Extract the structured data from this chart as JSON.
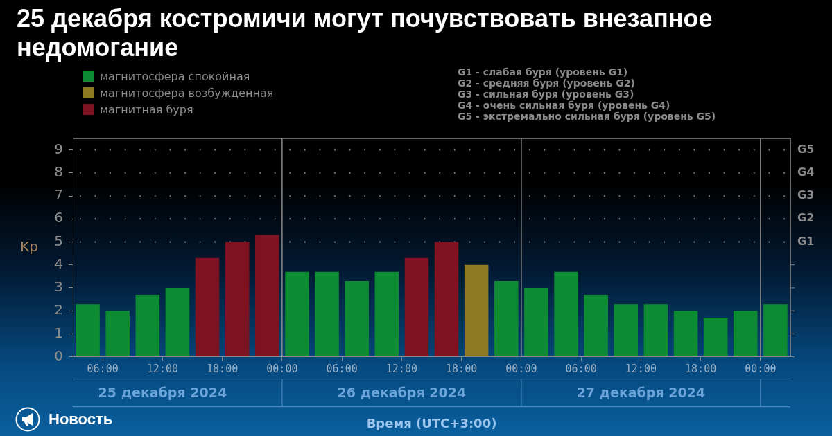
{
  "chart_data": {
    "type": "bar",
    "title": "25 декабря костромичи могут почувствовать внезапное недомогание",
    "xlabel": "Время (UTC+3:00)",
    "ylabel": "Kp",
    "xlim": [
      "2024-12-25T03:00",
      "2024-12-28T03:00"
    ],
    "xticks": [
      {
        "value": "2024-12-25T06:00",
        "label": "06:00"
      },
      {
        "value": "2024-12-25T12:00",
        "label": "12:00"
      },
      {
        "value": "2024-12-25T18:00",
        "label": "18:00"
      },
      {
        "value": "2024-12-26T00:00",
        "label": "00:00"
      },
      {
        "value": "2024-12-26T06:00",
        "label": "06:00"
      },
      {
        "value": "2024-12-26T12:00",
        "label": "12:00"
      },
      {
        "value": "2024-12-26T18:00",
        "label": "18:00"
      },
      {
        "value": "2024-12-27T00:00",
        "label": "00:00"
      },
      {
        "value": "2024-12-27T06:00",
        "label": "06:00"
      },
      {
        "value": "2024-12-27T12:00",
        "label": "12:00"
      },
      {
        "value": "2024-12-27T18:00",
        "label": "18:00"
      },
      {
        "value": "2024-12-28T00:00",
        "label": "00:00"
      }
    ],
    "x2lim": [
      "2024-12-25T03:00",
      "2024-12-28T03:00"
    ],
    "x2ticks": [
      {
        "value": "2024-12-25T12:00",
        "label": "25 декабря 2024"
      },
      {
        "value": "2024-12-26T12:00",
        "label": "26 декабря 2024"
      },
      {
        "value": "2024-12-27T12:00",
        "label": "27 декабря 2024"
      }
    ],
    "ylim": [
      0,
      9.5
    ],
    "yticks": [
      0,
      1,
      2,
      3,
      4,
      5,
      6,
      7,
      8,
      9
    ],
    "legend": "top left",
    "series": [
      {
        "name": "магнитосфера спокойная",
        "color": "#0e8c34",
        "x": [
          "2024-12-25T04:30",
          "2024-12-25T07:30",
          "2024-12-25T10:30",
          "2024-12-25T13:30",
          "2024-12-26T01:30",
          "2024-12-26T04:30",
          "2024-12-26T07:30",
          "2024-12-26T10:30",
          "2024-12-26T22:30",
          "2024-12-27T01:30",
          "2024-12-27T04:30",
          "2024-12-27T07:30",
          "2024-12-27T10:30",
          "2024-12-27T13:30",
          "2024-12-27T16:30",
          "2024-12-27T19:30",
          "2024-12-27T22:30",
          "2024-12-28T01:30"
        ],
        "values": [
          2.3,
          2.0,
          2.7,
          3.0,
          3.7,
          3.7,
          3.3,
          3.7,
          3.3,
          3.0,
          3.7,
          2.7,
          2.3,
          2.3,
          2.0,
          1.7,
          2.0,
          2.3
        ]
      },
      {
        "name": "магнитосфера возбужденная",
        "color": "#8c7a22",
        "x": [
          "2024-12-26T19:30"
        ],
        "values": [
          4.0
        ]
      },
      {
        "name": "магнитная буря",
        "color": "#7e1220",
        "x": [
          "2024-12-25T16:30",
          "2024-12-25T19:30",
          "2024-12-25T22:30",
          "2024-12-26T13:30",
          "2024-12-26T16:30"
        ],
        "values": [
          4.3,
          5.0,
          5.3,
          4.3,
          5.0
        ]
      }
    ],
    "ref_lines": [
      {
        "axis": "x",
        "value": "2024-12-26T00:00",
        "color": "#8c8c8c"
      },
      {
        "axis": "x",
        "value": "2024-12-27T00:00",
        "color": "#8c8c8c"
      },
      {
        "axis": "x",
        "value": "2024-12-28T00:00",
        "color": "#8c8c8c"
      },
      {
        "axis": "y",
        "value": 5,
        "label": "G1",
        "color": "#8a8a8a",
        "line_style": "dotted"
      },
      {
        "axis": "y",
        "value": 6,
        "label": "G2",
        "color": "#8a8a8a",
        "line_style": "dotted"
      },
      {
        "axis": "y",
        "value": 7,
        "label": "G3",
        "color": "#8a8a8a",
        "line_style": "dotted"
      },
      {
        "axis": "y",
        "value": 8,
        "label": "G4",
        "color": "#8a8a8a",
        "line_style": "dotted"
      },
      {
        "axis": "y",
        "value": 9,
        "label": "G5",
        "color": "#8a8a8a",
        "line_style": "dotted"
      }
    ],
    "annotations": [
      "G1 - слабая буря (уровень G1)",
      "G2 - средняя буря (уровень G2)",
      "G3 - сильная буря (уровень G3)",
      "G4 - очень сильная буря (уровень G4)",
      "G5 - экстремально сильная буря (уровень G5)",
      "Новость"
    ]
  }
}
